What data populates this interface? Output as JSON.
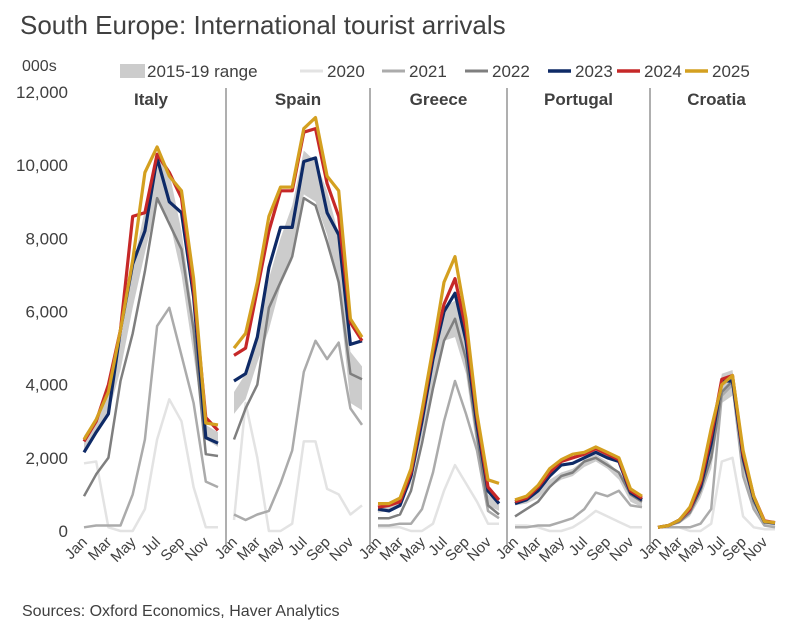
{
  "title": "South Europe: International tourist arrivals",
  "unit_label": "000s",
  "source": "Sources: Oxford Economics, Haver Analytics",
  "chart_data": {
    "type": "line",
    "ylim": [
      0,
      12000
    ],
    "y_ticks": [
      "0",
      "2,000",
      "4,000",
      "6,000",
      "8,000",
      "10,000",
      "12,000"
    ],
    "y_tick_values": [
      0,
      2000,
      4000,
      6000,
      8000,
      10000,
      12000
    ],
    "months": [
      "Jan",
      "Feb",
      "Mar",
      "Apr",
      "May",
      "Jun",
      "Jul",
      "Aug",
      "Sep",
      "Oct",
      "Nov",
      "Dec"
    ],
    "x_tick_labels": [
      "Jan",
      "Mar",
      "May",
      "Jul",
      "Sep",
      "Nov"
    ],
    "legend_position": "top",
    "legend": [
      {
        "key": "range",
        "label": "2015-19 range",
        "color": "#cccccc"
      },
      {
        "key": "2020",
        "label": "2020",
        "color": "#e3e3e3"
      },
      {
        "key": "2021",
        "label": "2021",
        "color": "#ababab"
      },
      {
        "key": "2022",
        "label": "2022",
        "color": "#7f7f7f"
      },
      {
        "key": "2023",
        "label": "2023",
        "color": "#0e2a66"
      },
      {
        "key": "2024",
        "label": "2024",
        "color": "#c62828"
      },
      {
        "key": "2025",
        "label": "2025",
        "color": "#d4a020"
      }
    ],
    "panels": [
      {
        "name": "Italy",
        "range_low": [
          2200,
          2700,
          3200,
          4400,
          6100,
          7600,
          9000,
          8500,
          7000,
          4800,
          2500,
          2300
        ],
        "range_high": [
          2600,
          3100,
          3700,
          5200,
          7200,
          8800,
          10300,
          9800,
          8200,
          5800,
          2900,
          2700
        ],
        "2020": [
          1850,
          1900,
          100,
          0,
          0,
          600,
          2500,
          3600,
          3000,
          1200,
          100,
          100
        ],
        "2021": [
          100,
          150,
          150,
          150,
          1000,
          2500,
          5600,
          6100,
          4800,
          3500,
          1350,
          1200
        ],
        "2022": [
          950,
          1550,
          2000,
          4100,
          5400,
          7100,
          9100,
          8400,
          7700,
          5500,
          2100,
          2050
        ],
        "2023": [
          2150,
          2700,
          3200,
          5500,
          7300,
          8200,
          10200,
          9000,
          8700,
          6400,
          2550,
          2400
        ],
        "2024": [
          2450,
          3000,
          4000,
          5500,
          8600,
          8700,
          10300,
          9800,
          9100,
          6600,
          3100,
          2750
        ],
        "2025": [
          2500,
          3050,
          3800,
          5500,
          7400,
          9800,
          10500,
          9700,
          9300,
          6900,
          2950,
          2900
        ]
      },
      {
        "name": "Spain",
        "range_low": [
          3200,
          3600,
          4600,
          5500,
          6700,
          7400,
          9200,
          9000,
          8100,
          6600,
          3500,
          3300
        ],
        "range_high": [
          3800,
          4300,
          5400,
          6900,
          8000,
          8900,
          10400,
          10100,
          9300,
          8100,
          4900,
          4500
        ],
        "2020": [
          300,
          3500,
          2000,
          0,
          0,
          200,
          2450,
          2450,
          1150,
          1000,
          450,
          700
        ],
        "2021": [
          450,
          300,
          450,
          550,
          1300,
          2200,
          4350,
          5200,
          4700,
          5150,
          3350,
          2900
        ],
        "2022": [
          2500,
          3350,
          4000,
          6100,
          6800,
          7500,
          9100,
          8900,
          7900,
          6800,
          4300,
          4150
        ],
        "2023": [
          4100,
          4300,
          5300,
          7200,
          8300,
          8300,
          10100,
          10200,
          8700,
          8100,
          5100,
          5200
        ],
        "2024": [
          4800,
          5000,
          6600,
          8200,
          9300,
          9300,
          10900,
          11000,
          9500,
          8600,
          5700,
          5200
        ],
        "2025": [
          5000,
          5400,
          6800,
          8600,
          9400,
          9400,
          11000,
          11300,
          9700,
          9300,
          5800,
          5300
        ]
      },
      {
        "name": "Greece",
        "range_low": [
          500,
          550,
          700,
          1300,
          2600,
          4000,
          5200,
          5300,
          4300,
          2200,
          700,
          550
        ],
        "range_high": [
          650,
          700,
          900,
          1800,
          3300,
          5000,
          6100,
          6300,
          5200,
          3000,
          1000,
          750
        ],
        "2020": [
          100,
          100,
          100,
          0,
          0,
          200,
          1100,
          1800,
          1300,
          800,
          200,
          200
        ],
        "2021": [
          150,
          150,
          200,
          200,
          600,
          1600,
          3000,
          4100,
          3200,
          2200,
          550,
          350
        ],
        "2022": [
          350,
          350,
          450,
          1100,
          2400,
          3900,
          5200,
          5800,
          4700,
          2600,
          700,
          450
        ],
        "2023": [
          600,
          550,
          700,
          1500,
          3000,
          4700,
          6000,
          6500,
          5200,
          2900,
          1100,
          750
        ],
        "2024": [
          650,
          700,
          800,
          1600,
          3200,
          4900,
          6200,
          6900,
          5500,
          3100,
          1200,
          850
        ],
        "2025": [
          750,
          750,
          900,
          1700,
          3300,
          5000,
          6800,
          7500,
          5800,
          3200,
          1400,
          1300
        ]
      },
      {
        "name": "Portugal",
        "range_low": [
          700,
          750,
          900,
          1200,
          1400,
          1500,
          1750,
          1900,
          1700,
          1400,
          800,
          650
        ],
        "range_high": [
          850,
          900,
          1100,
          1400,
          1600,
          1700,
          1950,
          2100,
          1900,
          1600,
          1000,
          850
        ],
        "2020": [
          150,
          150,
          100,
          0,
          0,
          100,
          300,
          550,
          400,
          250,
          100,
          100
        ],
        "2021": [
          100,
          100,
          150,
          150,
          250,
          350,
          600,
          1050,
          950,
          1100,
          700,
          650
        ],
        "2022": [
          400,
          600,
          800,
          1200,
          1500,
          1600,
          1900,
          2000,
          1800,
          1600,
          1000,
          800
        ],
        "2023": [
          750,
          850,
          1100,
          1500,
          1800,
          1850,
          2000,
          2150,
          2000,
          1900,
          1050,
          850
        ],
        "2024": [
          800,
          900,
          1200,
          1600,
          1900,
          2000,
          2100,
          2250,
          2100,
          1950,
          1100,
          900
        ],
        "2025": [
          850,
          950,
          1250,
          1700,
          1950,
          2100,
          2150,
          2300,
          2150,
          2000,
          1150,
          950
        ]
      },
      {
        "name": "Croatia",
        "range_low": [
          100,
          120,
          200,
          400,
          900,
          1700,
          3500,
          3700,
          1600,
          600,
          180,
          130
        ],
        "range_high": [
          150,
          170,
          300,
          600,
          1300,
          2300,
          4300,
          4400,
          2000,
          900,
          260,
          200
        ],
        "2020": [
          100,
          120,
          100,
          0,
          0,
          200,
          1900,
          2000,
          400,
          100,
          50,
          50
        ],
        "2021": [
          100,
          100,
          100,
          100,
          200,
          600,
          3700,
          4000,
          1500,
          600,
          150,
          100
        ],
        "2022": [
          100,
          150,
          250,
          500,
          1100,
          2000,
          3800,
          4100,
          1900,
          800,
          250,
          200
        ],
        "2023": [
          100,
          150,
          300,
          600,
          1200,
          2400,
          4100,
          4100,
          2000,
          900,
          250,
          220
        ],
        "2024": [
          100,
          150,
          300,
          600,
          1300,
          2600,
          4150,
          4250,
          2100,
          950,
          280,
          230
        ],
        "2025": [
          100,
          150,
          300,
          650,
          1400,
          2800,
          4000,
          4250,
          2200,
          950,
          260,
          230
        ]
      }
    ]
  }
}
